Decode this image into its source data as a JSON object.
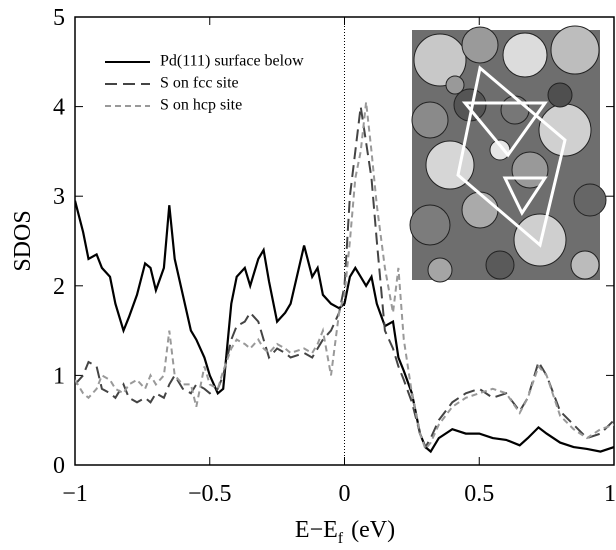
{
  "chart_data": {
    "type": "line",
    "y_label": "SDOS",
    "x_label": {
      "main": "E−E",
      "subscript": "f",
      "unit": "(eV)"
    },
    "x": [
      -1,
      -0.97,
      -0.95,
      -0.92,
      -0.9,
      -0.87,
      -0.85,
      -0.82,
      -0.8,
      -0.77,
      -0.74,
      -0.72,
      -0.7,
      -0.67,
      -0.65,
      -0.63,
      -0.6,
      -0.57,
      -0.55,
      -0.52,
      -0.5,
      -0.47,
      -0.45,
      -0.42,
      -0.4,
      -0.37,
      -0.35,
      -0.32,
      -0.3,
      -0.28,
      -0.25,
      -0.22,
      -0.2,
      -0.15,
      -0.12,
      -0.1,
      -0.08,
      -0.05,
      -0.02,
      0,
      0.02,
      0.04,
      0.06,
      0.08,
      0.1,
      0.12,
      0.15,
      0.18,
      0.2,
      0.22,
      0.25,
      0.28,
      0.3,
      0.32,
      0.35,
      0.4,
      0.45,
      0.5,
      0.55,
      0.6,
      0.65,
      0.68,
      0.72,
      0.75,
      0.8,
      0.85,
      0.9,
      0.95,
      1.0
    ],
    "series": [
      {
        "name": "Pd(111) surface below",
        "color": "#000000",
        "style": "solid",
        "values": [
          2.95,
          2.6,
          2.3,
          2.35,
          2.2,
          2.1,
          1.8,
          1.5,
          1.65,
          1.9,
          2.25,
          2.2,
          1.95,
          2.2,
          2.9,
          2.3,
          1.9,
          1.5,
          1.4,
          1.2,
          1.0,
          0.8,
          0.85,
          1.8,
          2.1,
          2.2,
          2.0,
          2.3,
          2.4,
          2.05,
          1.6,
          1.7,
          1.8,
          2.45,
          2.1,
          2.2,
          1.9,
          1.8,
          1.75,
          1.8,
          2.1,
          2.2,
          2.1,
          2.0,
          2.1,
          1.8,
          1.55,
          1.6,
          1.2,
          1.05,
          0.8,
          0.35,
          0.2,
          0.15,
          0.3,
          0.4,
          0.35,
          0.35,
          0.3,
          0.28,
          0.22,
          0.3,
          0.42,
          0.35,
          0.25,
          0.2,
          0.18,
          0.15,
          0.2
        ]
      },
      {
        "name": "S on fcc site",
        "color": "#444444",
        "style": "long-dash",
        "values": [
          0.9,
          1.0,
          1.15,
          1.1,
          0.85,
          0.8,
          0.75,
          0.9,
          0.75,
          0.7,
          0.75,
          0.7,
          0.8,
          0.75,
          0.9,
          1.0,
          0.85,
          0.8,
          0.9,
          0.85,
          0.8,
          0.85,
          1.0,
          1.4,
          1.55,
          1.6,
          1.7,
          1.6,
          1.4,
          1.2,
          1.3,
          1.25,
          1.2,
          1.25,
          1.2,
          1.3,
          1.4,
          1.5,
          1.7,
          2.0,
          3.0,
          3.5,
          4.0,
          3.6,
          3.2,
          2.5,
          1.5,
          1.3,
          1.1,
          0.95,
          0.7,
          0.35,
          0.2,
          0.3,
          0.5,
          0.7,
          0.8,
          0.85,
          0.75,
          0.8,
          0.6,
          0.75,
          1.15,
          1.0,
          0.6,
          0.45,
          0.3,
          0.35,
          0.5
        ]
      },
      {
        "name": "S on hcp site",
        "color": "#999999",
        "style": "short-dash",
        "values": [
          0.95,
          0.8,
          0.75,
          0.85,
          1.0,
          0.95,
          0.85,
          0.8,
          0.9,
          0.95,
          0.85,
          1.0,
          0.9,
          1.0,
          1.5,
          1.0,
          0.9,
          0.9,
          0.65,
          1.1,
          0.9,
          0.85,
          1.05,
          1.3,
          1.4,
          1.35,
          1.3,
          1.4,
          1.3,
          1.25,
          1.35,
          1.3,
          1.25,
          1.3,
          1.25,
          1.35,
          1.5,
          1.0,
          1.7,
          1.9,
          2.5,
          3.2,
          3.5,
          4.05,
          3.5,
          2.9,
          2.2,
          1.7,
          2.2,
          1.4,
          0.8,
          0.35,
          0.18,
          0.25,
          0.45,
          0.65,
          0.75,
          0.8,
          0.85,
          0.8,
          0.58,
          0.75,
          1.1,
          1.0,
          0.55,
          0.4,
          0.3,
          0.4,
          0.45
        ]
      }
    ],
    "xlim": [
      -1,
      1
    ],
    "ylim": [
      0,
      5
    ],
    "xticks": [
      {
        "value": -1,
        "label": "−1"
      },
      {
        "value": -0.5,
        "label": "−0.5"
      },
      0,
      0.5,
      1
    ],
    "yticks": [
      0,
      1,
      2,
      3,
      4,
      5
    ],
    "vline_x": 0,
    "legend": "upper left"
  }
}
